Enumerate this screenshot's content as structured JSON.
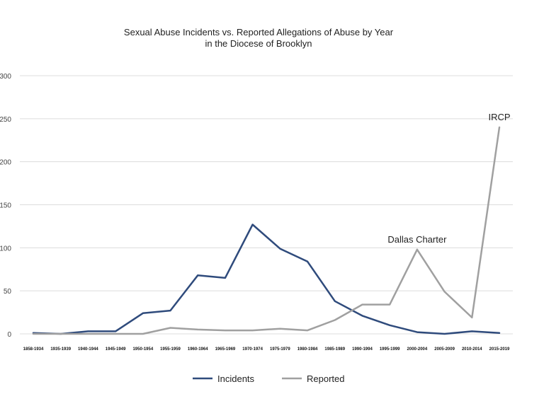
{
  "chart_data": {
    "type": "line",
    "title": "Sexual Abuse Incidents vs. Reported Allegations of Abuse by Year",
    "subtitle": "in the Diocese of Brooklyn",
    "xlabel": "",
    "ylabel": "",
    "ylim": [
      0,
      300
    ],
    "yticks": [
      0,
      50,
      100,
      150,
      200,
      250,
      300
    ],
    "grid": true,
    "legend": "bottom",
    "categories": [
      "1858-1934",
      "1935-1939",
      "1940-1944",
      "1945-1949",
      "1950-1954",
      "1955-1959",
      "1960-1964",
      "1965-1969",
      "1970-1974",
      "1975-1979",
      "1980-1984",
      "1985-1989",
      "1990-1994",
      "1995-1999",
      "2000-2004",
      "2005-2009",
      "2010-2014",
      "2015-2019"
    ],
    "series": [
      {
        "name": "Incidents",
        "color": "#2f4b7c",
        "values": [
          1,
          0,
          3,
          3,
          24,
          27,
          68,
          65,
          127,
          99,
          84,
          38,
          21,
          10,
          2,
          0,
          3,
          1
        ]
      },
      {
        "name": "Reported",
        "color": "#a0a0a0",
        "values": [
          0,
          0,
          0,
          0,
          0,
          7,
          5,
          4,
          4,
          6,
          4,
          16,
          34,
          34,
          98,
          49,
          19,
          240
        ]
      }
    ],
    "annotations": [
      {
        "text": "Dallas Charter",
        "category": "2000-2004",
        "series": "Reported"
      },
      {
        "text": "IRCP",
        "category": "2015-2019",
        "series": "Reported"
      }
    ]
  }
}
